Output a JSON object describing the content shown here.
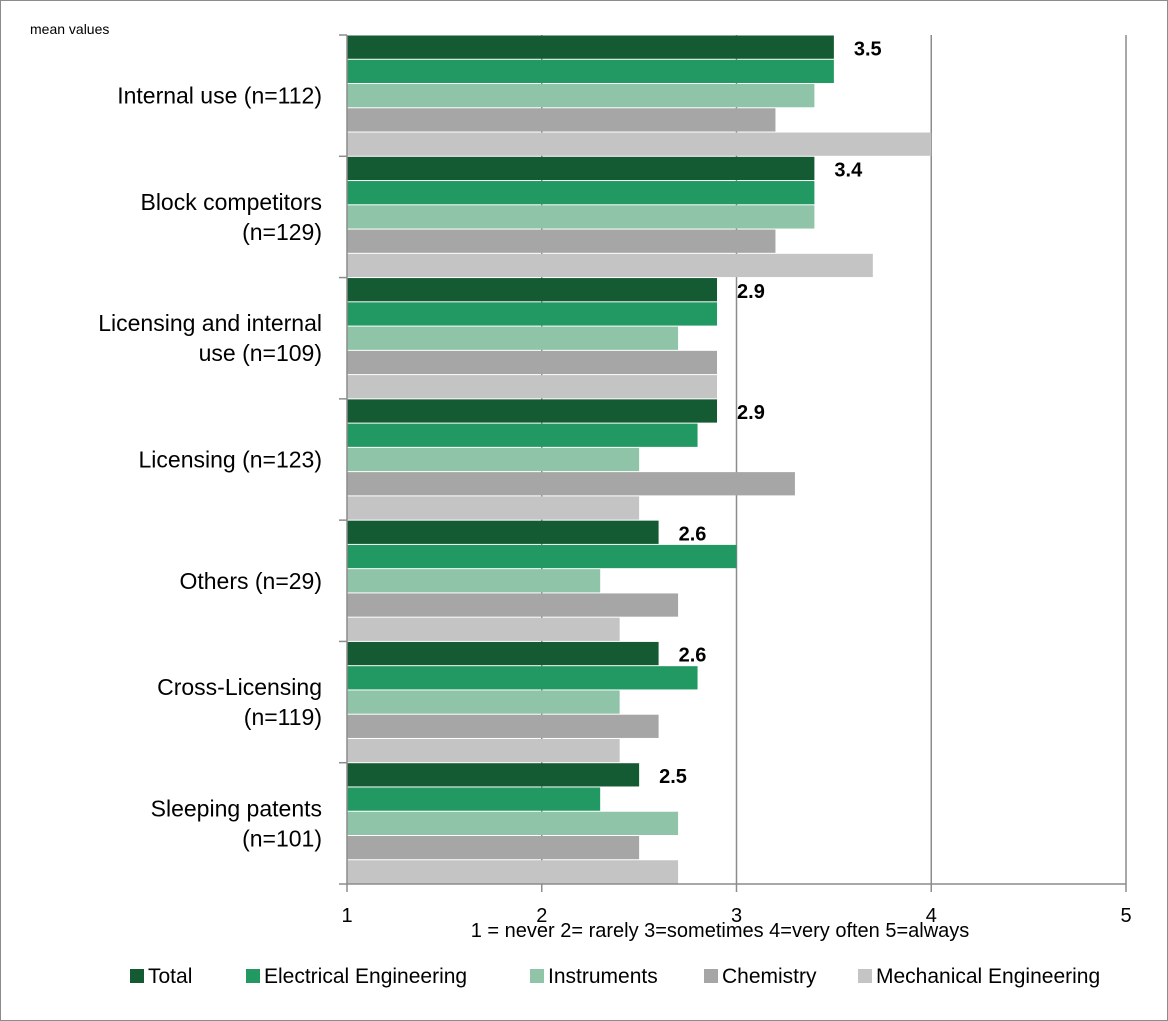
{
  "chart_data": {
    "type": "bar",
    "orientation": "horizontal",
    "ylabel": "mean values",
    "xlabel": "1 = never  2= rarely  3=sometimes   4=very often  5=always",
    "xlim": [
      1,
      5
    ],
    "xticks": [
      "1",
      "2",
      "3",
      "4",
      "5"
    ],
    "grid": true,
    "legend_position": "bottom",
    "categories": [
      [
        "Internal use (n=112)"
      ],
      [
        "Block competitors",
        "(n=129)"
      ],
      [
        "Licensing and internal",
        "use (n=109)"
      ],
      [
        "Licensing (n=123)"
      ],
      [
        "Others (n=29)"
      ],
      [
        "Cross-Licensing",
        "(n=119)"
      ],
      [
        "Sleeping patents",
        "(n=101)"
      ]
    ],
    "total_labels": [
      "3.5",
      "3.4",
      "2.9",
      "2.9",
      "2.6",
      "2.6",
      "2.5"
    ],
    "series": [
      {
        "name": "Total",
        "color": "#145a32",
        "values": [
          3.5,
          3.4,
          2.9,
          2.9,
          2.6,
          2.6,
          2.5
        ]
      },
      {
        "name": "Electrical Engineering",
        "color": "#229962",
        "values": [
          3.5,
          3.4,
          2.9,
          2.8,
          3.0,
          2.8,
          2.3
        ]
      },
      {
        "name": "Instruments",
        "color": "#8fc4a8",
        "values": [
          3.4,
          3.4,
          2.7,
          2.5,
          2.3,
          2.4,
          2.7
        ]
      },
      {
        "name": "Chemistry",
        "color": "#a6a6a6",
        "values": [
          3.2,
          3.2,
          2.9,
          3.3,
          2.7,
          2.6,
          2.5
        ]
      },
      {
        "name": "Mechanical Engineering",
        "color": "#c4c4c4",
        "values": [
          4.0,
          3.7,
          2.9,
          2.5,
          2.4,
          2.4,
          2.7
        ]
      }
    ]
  }
}
